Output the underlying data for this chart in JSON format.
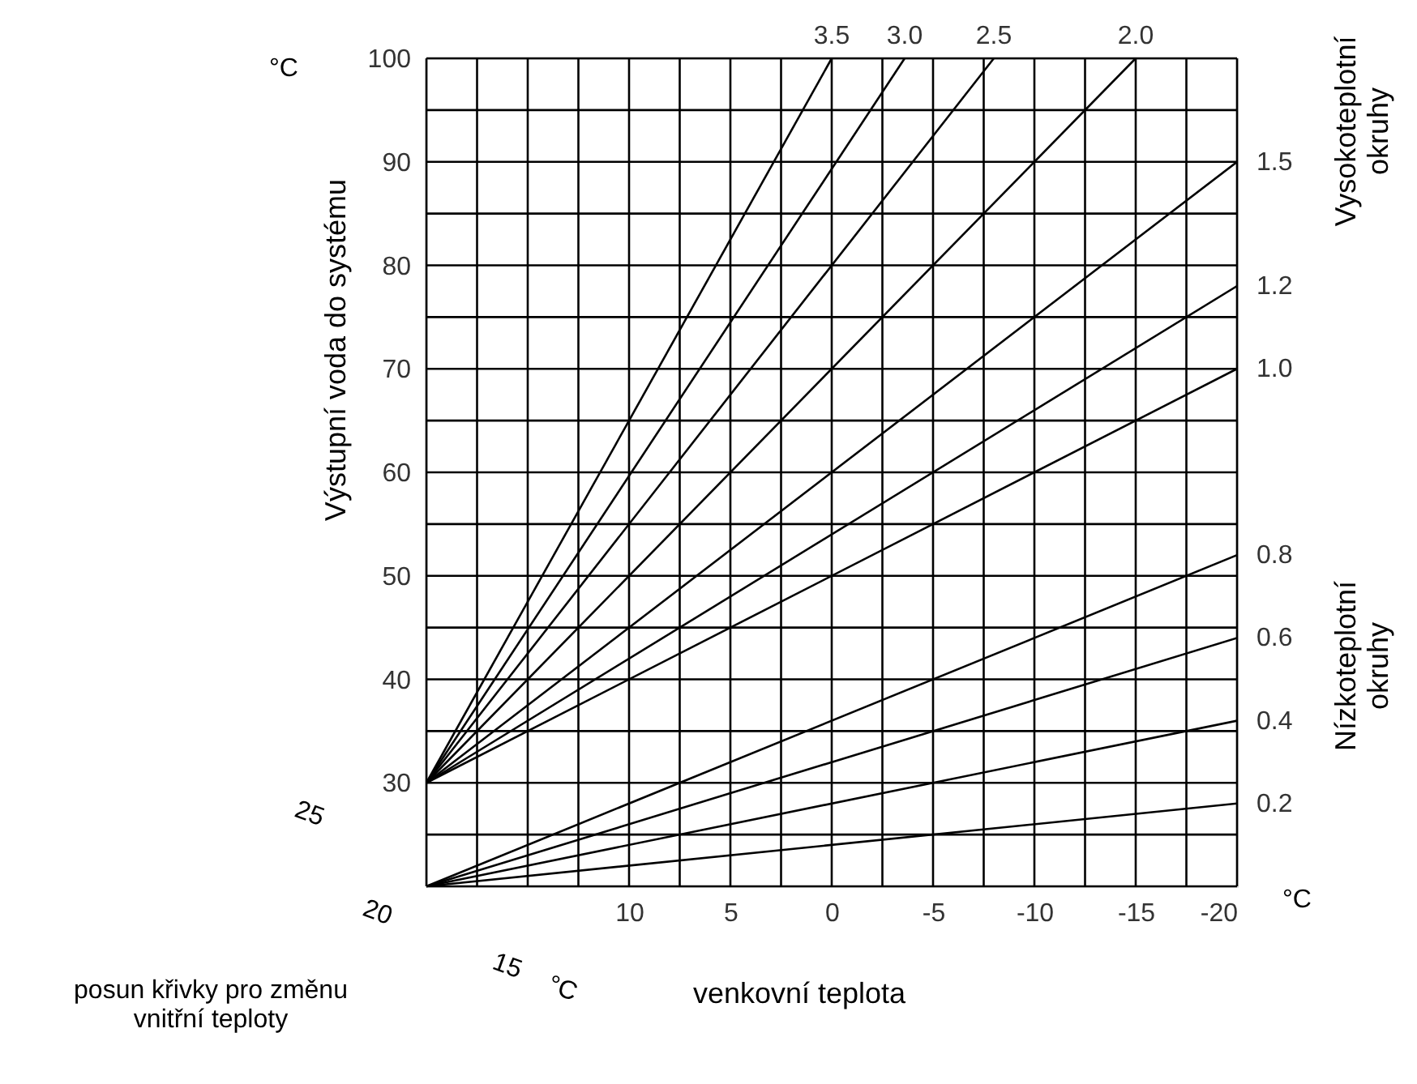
{
  "chart_data": {
    "type": "line",
    "xlabel": "venkovní teplota",
    "ylabel": "Výstupní voda do systému",
    "xlim": [
      20,
      -20
    ],
    "xticks": [
      {
        "value": 20,
        "label": null
      },
      {
        "value": 17.5,
        "label": null
      },
      {
        "value": 15,
        "label": null
      },
      {
        "value": 12.5,
        "label": null
      },
      10,
      {
        "value": 7.5,
        "label": null
      },
      5,
      {
        "value": 2.5,
        "label": null
      },
      0,
      {
        "value": -2.5,
        "label": null
      },
      -5,
      {
        "value": -7.5,
        "label": null
      },
      -10,
      {
        "value": -12.5,
        "label": null
      },
      -15,
      {
        "value": -17.5,
        "label": null
      },
      -20
    ],
    "ylim": [
      20,
      100
    ],
    "yticks": [
      {
        "value": 20,
        "label": null
      },
      {
        "value": 25,
        "label": null
      },
      30,
      {
        "value": 35,
        "label": null
      },
      40,
      {
        "value": 45,
        "label": null
      },
      50,
      {
        "value": 55,
        "label": null
      },
      60,
      {
        "value": 65,
        "label": null
      },
      70,
      {
        "value": 75,
        "label": null
      },
      80,
      {
        "value": 85,
        "label": null
      },
      90,
      {
        "value": 95,
        "label": null
      },
      100
    ],
    "grid": true,
    "legend": false,
    "marker": "none",
    "line_style": "solid",
    "series": [
      {
        "name": "3.5",
        "color": "#000000",
        "x": [
          20,
          0
        ],
        "values": [
          30,
          100
        ]
      },
      {
        "name": "3.0",
        "color": "#000000",
        "x": [
          20,
          -3.6
        ],
        "values": [
          30,
          100
        ]
      },
      {
        "name": "2.5",
        "color": "#000000",
        "x": [
          20,
          -8
        ],
        "values": [
          30,
          100
        ]
      },
      {
        "name": "2.0",
        "color": "#000000",
        "x": [
          20,
          -15
        ],
        "values": [
          30,
          100
        ]
      },
      {
        "name": "1.5",
        "color": "#000000",
        "x": [
          20,
          -20
        ],
        "values": [
          30,
          90
        ]
      },
      {
        "name": "1.2",
        "color": "#000000",
        "x": [
          20,
          -20
        ],
        "values": [
          30,
          78
        ]
      },
      {
        "name": "1.0",
        "color": "#000000",
        "x": [
          20,
          -20
        ],
        "values": [
          30,
          70
        ]
      },
      {
        "name": "0.8",
        "color": "#000000",
        "x": [
          20,
          -20
        ],
        "values": [
          20,
          52
        ]
      },
      {
        "name": "0.6",
        "color": "#000000",
        "x": [
          20,
          -20
        ],
        "values": [
          20,
          44
        ]
      },
      {
        "name": "0.4",
        "color": "#000000",
        "x": [
          20,
          -20
        ],
        "values": [
          20,
          36
        ]
      },
      {
        "name": "0.2",
        "color": "#000000",
        "x": [
          20,
          -20
        ],
        "values": [
          20,
          28
        ]
      }
    ],
    "annotations": [
      "°C",
      "°C",
      "Vysokoteplotní\nokruhy",
      "Nízkoteplotní\nokruhy",
      "posun křivky pro změnu\nvnitřní teploty",
      "25",
      "20",
      "15",
      "°C"
    ]
  }
}
